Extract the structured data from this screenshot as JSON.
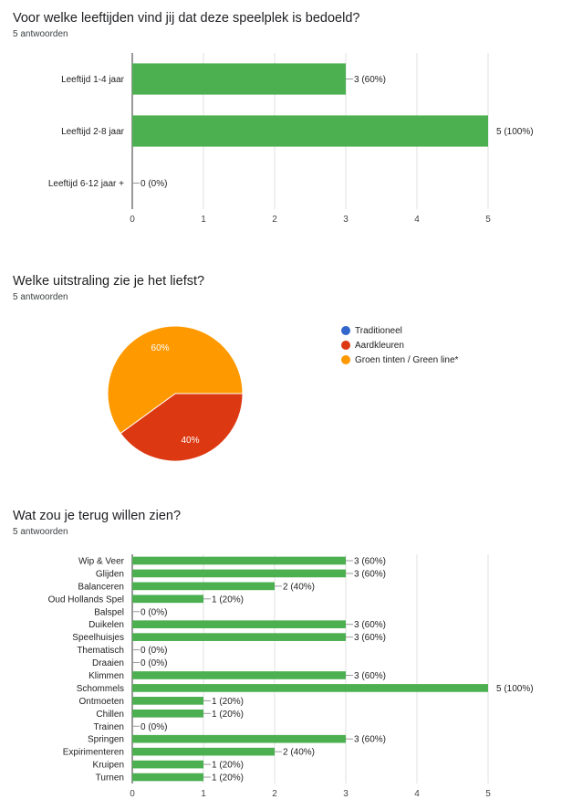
{
  "chart_data": [
    {
      "type": "bar",
      "orientation": "horizontal",
      "title": "Voor welke leeftijden vind jij dat deze speelplek is bedoeld?",
      "subtitle": "5 antwoorden",
      "categories": [
        "Leeftijd 1-4 jaar",
        "Leeftijd 2-8 jaar",
        "Leeftijd 6-12 jaar +"
      ],
      "values": [
        3,
        5,
        0
      ],
      "data_labels": [
        "3 (60%)",
        "5 (100%)",
        "0 (0%)"
      ],
      "xlim": [
        0,
        5
      ],
      "xticks": [
        "0",
        "1",
        "2",
        "3",
        "4",
        "5"
      ],
      "grid": true,
      "color": "#4caf50"
    },
    {
      "type": "pie",
      "title": "Welke uitstraling zie je het liefst?",
      "subtitle": "5 antwoorden",
      "labels": [
        "Traditioneel",
        "Aardkleuren",
        "Groen tinten / Green line*"
      ],
      "values": [
        0,
        2,
        3
      ],
      "data_labels": [
        "",
        "40%",
        "60%"
      ],
      "colors": [
        "#3366cc",
        "#dc3912",
        "#ff9900"
      ],
      "legend": "right"
    },
    {
      "type": "bar",
      "orientation": "horizontal",
      "title": "Wat zou je terug willen zien?",
      "subtitle": "5 antwoorden",
      "categories": [
        "Wip & Veer",
        "Glijden",
        "Balanceren",
        "Oud Hollands Spel",
        "Balspel",
        "Duikelen",
        "Speelhuisjes",
        "Thematisch",
        "Draaien",
        "Klimmen",
        "Schommels",
        "Ontmoeten",
        "Chillen",
        "Trainen",
        "Springen",
        "Expirimenteren",
        "Kruipen",
        "Turnen"
      ],
      "values": [
        3,
        3,
        2,
        1,
        0,
        3,
        3,
        0,
        0,
        3,
        5,
        1,
        1,
        0,
        3,
        2,
        1,
        1
      ],
      "data_labels": [
        "3 (60%)",
        "3 (60%)",
        "2 (40%)",
        "1 (20%)",
        "0 (0%)",
        "3 (60%)",
        "3 (60%)",
        "0 (0%)",
        "0 (0%)",
        "3 (60%)",
        "5 (100%)",
        "1 (20%)",
        "1 (20%)",
        "0 (0%)",
        "3 (60%)",
        "2 (40%)",
        "1 (20%)",
        "1 (20%)"
      ],
      "xlim": [
        0,
        5
      ],
      "xticks": [
        "0",
        "1",
        "2",
        "3",
        "4",
        "5"
      ],
      "grid": true,
      "color": "#4caf50"
    }
  ]
}
